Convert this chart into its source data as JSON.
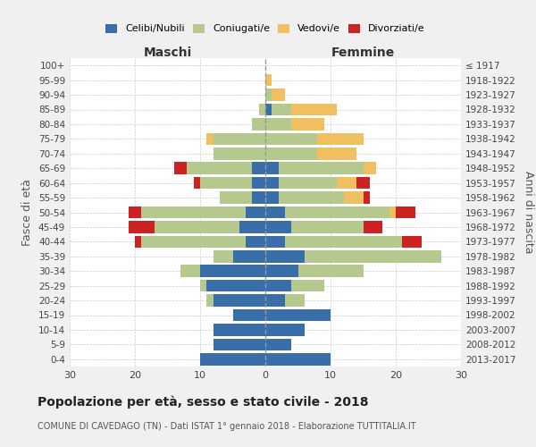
{
  "age_groups": [
    "0-4",
    "5-9",
    "10-14",
    "15-19",
    "20-24",
    "25-29",
    "30-34",
    "35-39",
    "40-44",
    "45-49",
    "50-54",
    "55-59",
    "60-64",
    "65-69",
    "70-74",
    "75-79",
    "80-84",
    "85-89",
    "90-94",
    "95-99",
    "100+"
  ],
  "birth_years": [
    "2013-2017",
    "2008-2012",
    "2003-2007",
    "1998-2002",
    "1993-1997",
    "1988-1992",
    "1983-1987",
    "1978-1982",
    "1973-1977",
    "1968-1972",
    "1963-1967",
    "1958-1962",
    "1953-1957",
    "1948-1952",
    "1943-1947",
    "1938-1942",
    "1933-1937",
    "1928-1932",
    "1923-1927",
    "1918-1922",
    "≤ 1917"
  ],
  "colors": {
    "celibi": "#3a6ea8",
    "coniugati": "#b5c98e",
    "vedovi": "#f0c060",
    "divorziati": "#cc2222"
  },
  "maschi": {
    "celibi": [
      10,
      8,
      8,
      5,
      8,
      9,
      10,
      5,
      3,
      4,
      3,
      2,
      2,
      2,
      0,
      0,
      0,
      0,
      0,
      0,
      0
    ],
    "coniugati": [
      0,
      0,
      0,
      0,
      1,
      1,
      3,
      3,
      16,
      13,
      16,
      5,
      8,
      10,
      8,
      8,
      2,
      1,
      0,
      0,
      0
    ],
    "vedovi": [
      0,
      0,
      0,
      0,
      0,
      0,
      0,
      0,
      0,
      0,
      0,
      0,
      0,
      0,
      0,
      1,
      0,
      0,
      0,
      0,
      0
    ],
    "divorziati": [
      0,
      0,
      0,
      0,
      0,
      0,
      0,
      0,
      1,
      4,
      2,
      0,
      1,
      2,
      0,
      0,
      0,
      0,
      0,
      0,
      0
    ]
  },
  "femmine": {
    "celibi": [
      10,
      4,
      6,
      10,
      3,
      4,
      5,
      6,
      3,
      4,
      3,
      2,
      2,
      2,
      0,
      0,
      0,
      1,
      0,
      0,
      0
    ],
    "coniugati": [
      0,
      0,
      0,
      0,
      3,
      5,
      10,
      21,
      18,
      11,
      16,
      10,
      9,
      13,
      8,
      8,
      4,
      3,
      1,
      0,
      0
    ],
    "vedovi": [
      0,
      0,
      0,
      0,
      0,
      0,
      0,
      0,
      0,
      0,
      1,
      3,
      3,
      2,
      6,
      7,
      5,
      7,
      2,
      1,
      0
    ],
    "divorziati": [
      0,
      0,
      0,
      0,
      0,
      0,
      0,
      0,
      3,
      3,
      3,
      1,
      2,
      0,
      0,
      0,
      0,
      0,
      0,
      0,
      0
    ]
  },
  "xlim": 30,
  "title": "Popolazione per età, sesso e stato civile - 2018",
  "subtitle": "COMUNE DI CAVEDAGO (TN) - Dati ISTAT 1° gennaio 2018 - Elaborazione TUTTITALIA.IT",
  "xlabel_left": "Maschi",
  "xlabel_right": "Femmine",
  "ylabel_left": "Fasce di età",
  "ylabel_right": "Anni di nascita",
  "bg_color": "#f0f0f0",
  "plot_bg_color": "#ffffff"
}
